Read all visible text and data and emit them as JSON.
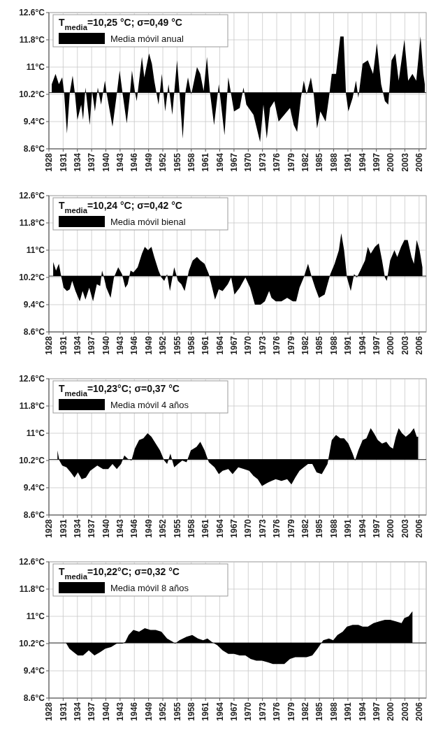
{
  "chart_data": [
    {
      "type": "area",
      "title": "T$_{media}$=10,25 °C; σ=0,49 °C",
      "legend": "top left",
      "grid": true,
      "xlim": [
        1928,
        2007.5
      ],
      "ylim": [
        8.6,
        12.6
      ],
      "xticks": [
        1928,
        1931,
        1934,
        1937,
        1940,
        1943,
        1946,
        1949,
        1952,
        1955,
        1958,
        1961,
        1964,
        1967,
        1970,
        1973,
        1976,
        1979,
        1982,
        1985,
        1988,
        1991,
        1994,
        1997,
        2000,
        2003,
        2006
      ],
      "yticks": [
        {
          "value": 8.6,
          "label": "8.6°C"
        },
        {
          "value": 9.4,
          "label": "9.4°C"
        },
        {
          "value": 10.2,
          "label": "10.2°C"
        },
        {
          "value": 11,
          "label": "11°C"
        },
        {
          "value": 11.8,
          "label": "11.8°C"
        },
        {
          "value": 12.6,
          "label": "12.6°C"
        }
      ],
      "ref_lines": [
        {
          "axis": "y",
          "value": 10.25,
          "color": "#000000"
        }
      ],
      "series": [
        {
          "name": "Media móvil anual",
          "color": "#000000",
          "x": [
            1928.6,
            1929.4,
            1930.1,
            1930.8,
            1931.2,
            1931.8,
            1932.4,
            1933.0,
            1933.5,
            1934.0,
            1934.8,
            1935.2,
            1935.7,
            1936.6,
            1937.1,
            1937.7,
            1938.3,
            1939.0,
            1939.8,
            1940.2,
            1941.4,
            1942.2,
            1942.9,
            1943.5,
            1944.4,
            1945.0,
            1945.5,
            1946.1,
            1946.5,
            1947.6,
            1948.1,
            1949.1,
            1949.7,
            1950.2,
            1951.1,
            1951.8,
            1952.5,
            1953.2,
            1954.0,
            1955.0,
            1955.5,
            1956.2,
            1956.8,
            1957.3,
            1958.0,
            1959.2,
            1959.9,
            1960.6,
            1961.3,
            1961.9,
            1962.8,
            1963.8,
            1965.0,
            1965.8,
            1966.4,
            1967.0,
            1968.2,
            1969.0,
            1969.6,
            1971.1,
            1972.5,
            1973.2,
            1973.9,
            1974.6,
            1975.5,
            1976.4,
            1977.6,
            1978.8,
            1979.6,
            1980.3,
            1981.1,
            1981.7,
            1982.3,
            1983.2,
            1983.8,
            1984.5,
            1985.2,
            1986.3,
            1987.0,
            1987.6,
            1988.5,
            1989.4,
            1990.1,
            1990.6,
            1991.1,
            1992.0,
            1992.7,
            1993.2,
            1994.1,
            1995.2,
            1996.3,
            1997.1,
            1998.0,
            1998.8,
            1999.5,
            2000.2,
            2001.0,
            2001.7,
            2002.9,
            2003.7,
            2004.6,
            2005.4,
            2006.3,
            2006.9,
            2007.2
          ],
          "values": [
            10.5,
            10.8,
            10.5,
            10.7,
            10.25,
            9.05,
            10.25,
            10.75,
            10.2,
            9.45,
            9.9,
            9.45,
            10.4,
            9.3,
            10.3,
            9.7,
            10.4,
            9.9,
            10.6,
            10.2,
            9.25,
            10.1,
            10.9,
            10.25,
            9.35,
            10.1,
            10.9,
            10.3,
            10.0,
            11.3,
            10.7,
            11.4,
            11.1,
            10.6,
            9.9,
            10.8,
            9.7,
            10.5,
            9.6,
            11.2,
            10.3,
            8.9,
            10.3,
            10.7,
            10.2,
            11.0,
            10.8,
            10.3,
            11.3,
            10.3,
            9.3,
            10.5,
            9.0,
            10.7,
            10.2,
            9.7,
            9.8,
            10.4,
            9.9,
            9.6,
            8.8,
            9.9,
            8.9,
            9.8,
            10.0,
            9.4,
            9.6,
            9.8,
            9.3,
            9.1,
            10.1,
            10.6,
            10.2,
            10.7,
            10.2,
            9.2,
            9.7,
            9.4,
            10.1,
            10.8,
            10.8,
            11.9,
            11.9,
            10.2,
            9.7,
            10.1,
            10.6,
            10.1,
            11.1,
            11.2,
            10.8,
            11.7,
            10.5,
            10.0,
            9.9,
            11.2,
            11.4,
            10.6,
            11.8,
            10.6,
            10.8,
            10.6,
            11.9,
            10.8,
            10.5
          ]
        }
      ]
    },
    {
      "type": "area",
      "title": "T$_{media}$=10,24 °C; σ=0,42 °C",
      "legend": "top left",
      "grid": true,
      "xlim": [
        1928,
        2007.5
      ],
      "ylim": [
        8.6,
        12.6
      ],
      "xticks": [
        1928,
        1931,
        1934,
        1937,
        1940,
        1943,
        1946,
        1949,
        1952,
        1955,
        1958,
        1961,
        1964,
        1967,
        1970,
        1973,
        1976,
        1979,
        1982,
        1985,
        1988,
        1991,
        1994,
        1997,
        2000,
        2003,
        2006
      ],
      "yticks": [
        {
          "value": 8.6,
          "label": "8.6°C"
        },
        {
          "value": 9.4,
          "label": "9.4°C"
        },
        {
          "value": 10.2,
          "label": "10.2°C"
        },
        {
          "value": 11,
          "label": "11°C"
        },
        {
          "value": 11.8,
          "label": "11.8°C"
        },
        {
          "value": 12.6,
          "label": "12.6°C"
        }
      ],
      "ref_lines": [
        {
          "axis": "y",
          "value": 10.24,
          "color": "#000000"
        }
      ],
      "series": [
        {
          "name": "Media móvil bienal",
          "color": "#000000",
          "x": [
            1928.9,
            1929.5,
            1930.1,
            1930.5,
            1931.1,
            1931.8,
            1932.4,
            1932.9,
            1933.6,
            1934.5,
            1935.1,
            1935.7,
            1936.5,
            1937.3,
            1938.1,
            1938.8,
            1939.2,
            1939.6,
            1940.1,
            1941.0,
            1941.7,
            1942.6,
            1943.4,
            1944.1,
            1944.6,
            1945.2,
            1945.8,
            1946.7,
            1947.6,
            1948.2,
            1948.9,
            1949.6,
            1950.2,
            1951.1,
            1951.7,
            1952.3,
            1952.9,
            1953.5,
            1954.4,
            1955.2,
            1955.9,
            1956.6,
            1957.5,
            1958.3,
            1959.2,
            1959.9,
            1960.8,
            1961.7,
            1962.4,
            1963.0,
            1963.8,
            1964.6,
            1965.7,
            1966.4,
            1967.1,
            1968.2,
            1969.4,
            1970.4,
            1971.4,
            1972.6,
            1973.5,
            1974.4,
            1974.9,
            1975.8,
            1977.0,
            1978.2,
            1979.4,
            1980.1,
            1980.8,
            1981.7,
            1982.6,
            1983.4,
            1984.1,
            1984.9,
            1986.1,
            1987.3,
            1988.2,
            1989.1,
            1989.6,
            1990.2,
            1990.8,
            1991.6,
            1992.3,
            1992.9,
            1993.6,
            1994.6,
            1995.2,
            1995.8,
            1996.7,
            1997.5,
            1998.2,
            1998.8,
            1999.2,
            1999.9,
            2000.8,
            2001.4,
            2002.2,
            2002.9,
            2003.6,
            2004.4,
            2004.9,
            2005.5,
            2006.1,
            2006.7
          ],
          "values": [
            10.65,
            10.4,
            10.6,
            10.3,
            9.9,
            9.8,
            9.85,
            10.1,
            9.8,
            9.5,
            9.8,
            9.55,
            9.9,
            9.5,
            10.0,
            9.95,
            10.4,
            10.2,
            9.9,
            9.6,
            10.2,
            10.5,
            10.3,
            9.9,
            10.0,
            10.4,
            10.35,
            10.5,
            10.9,
            11.1,
            11.0,
            11.1,
            10.8,
            10.4,
            10.2,
            10.1,
            10.3,
            9.8,
            10.5,
            10.1,
            10.0,
            9.8,
            10.4,
            10.7,
            10.8,
            10.7,
            10.6,
            10.3,
            9.9,
            9.55,
            9.85,
            9.8,
            10.0,
            10.2,
            9.7,
            9.9,
            10.2,
            9.9,
            9.4,
            9.4,
            9.5,
            9.8,
            9.6,
            9.5,
            9.5,
            9.6,
            9.5,
            9.5,
            9.9,
            10.2,
            10.6,
            10.2,
            9.9,
            9.6,
            9.7,
            10.3,
            10.6,
            11.0,
            11.5,
            11.0,
            10.2,
            9.8,
            10.3,
            10.2,
            10.4,
            10.7,
            11.1,
            10.9,
            11.1,
            11.2,
            10.7,
            10.2,
            10.1,
            10.7,
            11.0,
            10.8,
            11.1,
            11.3,
            11.3,
            10.8,
            10.6,
            11.3,
            11.0,
            10.5
          ]
        }
      ]
    },
    {
      "type": "area",
      "title": "T$_{media}$=10,23°C; σ=0,37 °C",
      "legend": "top left",
      "grid": true,
      "xlim": [
        1928,
        2007.5
      ],
      "ylim": [
        8.6,
        12.6
      ],
      "xticks": [
        1928,
        1931,
        1934,
        1937,
        1940,
        1943,
        1946,
        1949,
        1952,
        1955,
        1958,
        1961,
        1964,
        1967,
        1970,
        1973,
        1976,
        1979,
        1982,
        1985,
        1988,
        1991,
        1994,
        1997,
        2000,
        2003,
        2006
      ],
      "yticks": [
        {
          "value": 8.6,
          "label": "8.6°C"
        },
        {
          "value": 9.4,
          "label": "9.4°C"
        },
        {
          "value": 10.2,
          "label": "10.2°C"
        },
        {
          "value": 11,
          "label": "11°C"
        },
        {
          "value": 11.8,
          "label": "11.8°C"
        },
        {
          "value": 12.6,
          "label": "12.6°C"
        }
      ],
      "ref_lines": [
        {
          "axis": "y",
          "value": 10.23,
          "color": "#000000"
        }
      ],
      "series": [
        {
          "name": "Media móvil 4 años",
          "color": "#000000",
          "x": [
            1929.8,
            1930.2,
            1930.8,
            1931.7,
            1932.6,
            1933.4,
            1934.1,
            1934.9,
            1935.8,
            1936.7,
            1938.2,
            1939.4,
            1940.5,
            1941.4,
            1942.3,
            1943.2,
            1943.9,
            1944.6,
            1945.4,
            1946.1,
            1947.0,
            1947.9,
            1948.8,
            1949.6,
            1950.5,
            1951.4,
            1952.3,
            1952.9,
            1953.6,
            1954.4,
            1955.2,
            1956.1,
            1957.0,
            1957.9,
            1959.1,
            1959.9,
            1960.8,
            1961.7,
            1962.9,
            1963.8,
            1964.6,
            1965.8,
            1966.7,
            1967.9,
            1969.1,
            1970.2,
            1971.1,
            1972.0,
            1972.9,
            1974.1,
            1974.9,
            1975.8,
            1977.0,
            1978.2,
            1979.1,
            1979.9,
            1980.8,
            1981.7,
            1982.6,
            1983.5,
            1984.4,
            1985.5,
            1986.7,
            1987.6,
            1988.5,
            1989.4,
            1990.2,
            1991.1,
            1992.0,
            1992.5,
            1993.2,
            1994.1,
            1994.9,
            1995.8,
            1996.5,
            1997.3,
            1998.2,
            1999.1,
            1999.9,
            2000.5,
            2001.1,
            2001.7,
            2002.4,
            2003.2,
            2004.1,
            2004.9,
            2005.5,
            2005.8
          ],
          "values": [
            10.5,
            10.2,
            10.05,
            10.0,
            9.85,
            9.7,
            9.85,
            9.65,
            9.7,
            9.9,
            10.05,
            9.95,
            9.95,
            10.1,
            9.95,
            10.1,
            10.35,
            10.25,
            10.2,
            10.55,
            10.8,
            10.85,
            11.0,
            10.9,
            10.7,
            10.5,
            10.2,
            10.1,
            10.4,
            10.0,
            10.1,
            10.2,
            10.15,
            10.5,
            10.6,
            10.75,
            10.5,
            10.15,
            10.0,
            9.8,
            9.9,
            9.95,
            9.8,
            10.0,
            9.95,
            9.9,
            9.75,
            9.65,
            9.45,
            9.55,
            9.6,
            9.65,
            9.6,
            9.65,
            9.5,
            9.7,
            9.9,
            10.0,
            10.1,
            10.1,
            9.85,
            9.8,
            10.1,
            10.8,
            10.95,
            10.85,
            10.85,
            10.7,
            10.4,
            10.2,
            10.5,
            10.8,
            10.85,
            11.15,
            11.0,
            10.8,
            10.7,
            10.75,
            10.6,
            10.55,
            10.9,
            11.15,
            11.0,
            10.9,
            11.0,
            11.15,
            10.9,
            10.9
          ]
        }
      ]
    },
    {
      "type": "area",
      "title": "T$_{media}$=10,22°C; σ=0,32 °C",
      "legend": "top left",
      "grid": true,
      "xlim": [
        1928,
        2007.5
      ],
      "ylim": [
        8.6,
        12.6
      ],
      "xticks": [
        1928,
        1931,
        1934,
        1937,
        1940,
        1943,
        1946,
        1949,
        1952,
        1955,
        1958,
        1961,
        1964,
        1967,
        1970,
        1973,
        1976,
        1979,
        1982,
        1985,
        1988,
        1991,
        1994,
        1997,
        2000,
        2003,
        2006
      ],
      "yticks": [
        {
          "value": 8.6,
          "label": "8.6°C"
        },
        {
          "value": 9.4,
          "label": "9.4°C"
        },
        {
          "value": 10.2,
          "label": "10.2°C"
        },
        {
          "value": 11,
          "label": "11°C"
        },
        {
          "value": 11.8,
          "label": "11.8°C"
        },
        {
          "value": 12.6,
          "label": "12.6°C"
        }
      ],
      "ref_lines": [
        {
          "axis": "y",
          "value": 10.22,
          "color": "#000000"
        }
      ],
      "series": [
        {
          "name": "Media móvil 8 años",
          "color": "#000000",
          "x": [
            1931.6,
            1932.3,
            1933.2,
            1934.1,
            1935.2,
            1936.4,
            1937.6,
            1938.8,
            1939.9,
            1941.1,
            1942.3,
            1943.5,
            1944.1,
            1944.8,
            1945.8,
            1947.0,
            1948.2,
            1949.4,
            1950.5,
            1951.7,
            1952.9,
            1954.1,
            1954.6,
            1955.5,
            1957.0,
            1958.2,
            1959.4,
            1960.5,
            1961.4,
            1962.3,
            1963.5,
            1964.6,
            1965.8,
            1967.0,
            1968.2,
            1969.4,
            1970.5,
            1971.7,
            1972.9,
            1974.1,
            1975.2,
            1976.4,
            1977.6,
            1978.8,
            1979.9,
            1981.1,
            1982.3,
            1983.5,
            1984.6,
            1985.8,
            1987.0,
            1987.9,
            1988.8,
            1989.9,
            1990.8,
            1992.0,
            1993.2,
            1994.1,
            1995.2,
            1996.4,
            1997.6,
            1998.8,
            1999.9,
            2001.1,
            2002.3,
            2002.9,
            2003.8,
            2004.6
          ],
          "values": [
            10.22,
            10.05,
            9.95,
            9.85,
            9.85,
            10.0,
            9.85,
            9.95,
            10.05,
            10.1,
            10.2,
            10.2,
            10.25,
            10.45,
            10.6,
            10.55,
            10.65,
            10.6,
            10.6,
            10.55,
            10.35,
            10.25,
            10.2,
            10.3,
            10.4,
            10.45,
            10.35,
            10.3,
            10.35,
            10.25,
            10.15,
            10.0,
            9.9,
            9.9,
            9.85,
            9.85,
            9.75,
            9.7,
            9.7,
            9.65,
            9.6,
            9.6,
            9.6,
            9.75,
            9.8,
            9.8,
            9.8,
            9.85,
            10.05,
            10.3,
            10.35,
            10.3,
            10.45,
            10.55,
            10.7,
            10.75,
            10.75,
            10.7,
            10.7,
            10.8,
            10.85,
            10.9,
            10.9,
            10.85,
            10.8,
            10.95,
            11.0,
            11.15
          ]
        }
      ]
    }
  ]
}
